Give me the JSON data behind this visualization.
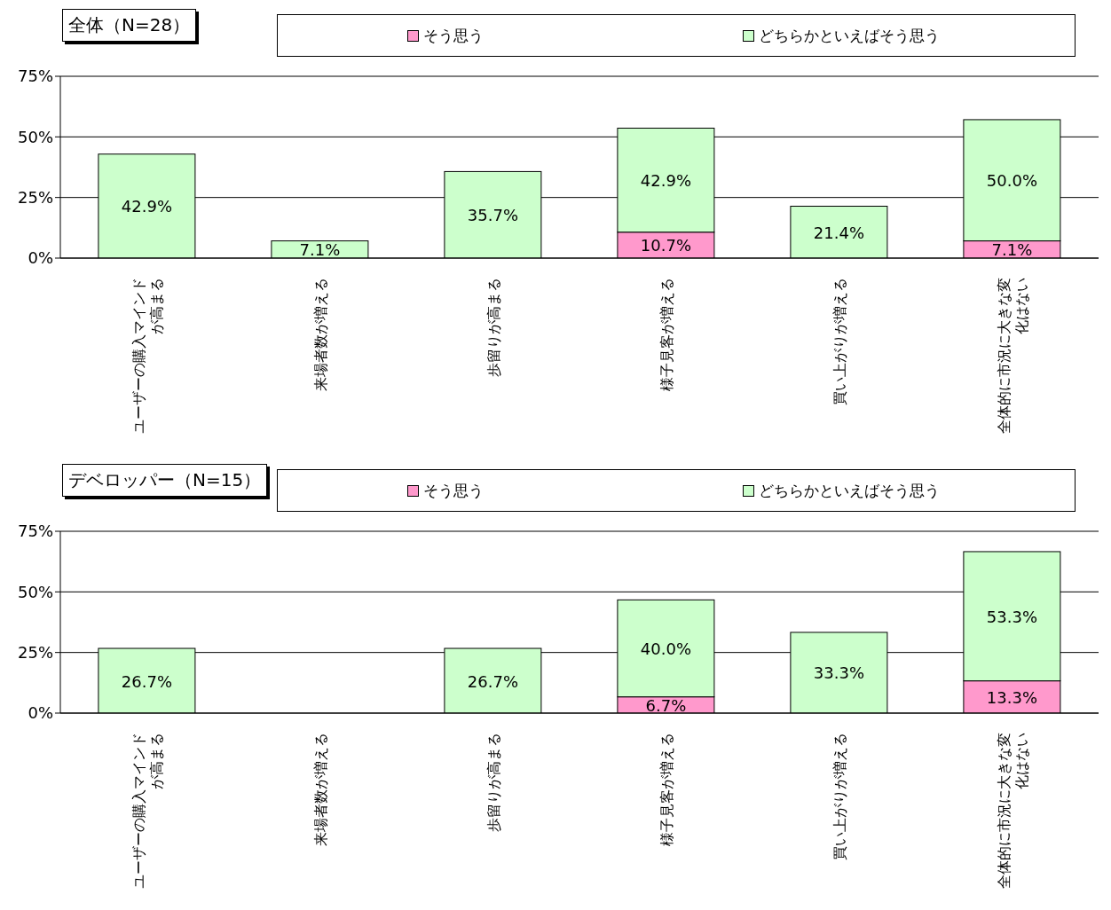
{
  "chart_data": [
    {
      "type": "bar",
      "title": "全体（N=28）",
      "stacked": true,
      "legend": "top",
      "grid": "y",
      "categories": [
        "ユーザーの購入マインドが高まる",
        "来場者数が増える",
        "歩留りが高まる",
        "様子見客が増える",
        "買い上がりが増える",
        "全体的に市況に大きな変化はない"
      ],
      "series": [
        {
          "name": "そう思う",
          "color": "#ff99cc",
          "values": [
            null,
            null,
            null,
            10.7,
            null,
            7.1
          ],
          "value_labels": [
            null,
            null,
            null,
            "10.7%",
            null,
            "7.1%"
          ]
        },
        {
          "name": "どちらかといえばそう思う",
          "color": "#ccffcc",
          "values": [
            42.9,
            7.1,
            35.7,
            42.9,
            21.4,
            50.0
          ],
          "value_labels": [
            "42.9%",
            "7.1%",
            "35.7%",
            "42.9%",
            "21.4%",
            "50.0%"
          ]
        }
      ],
      "ylim": [
        0,
        75
      ],
      "yticks": [
        {
          "value": 0,
          "label": "0%"
        },
        {
          "value": 25,
          "label": "25%"
        },
        {
          "value": 50,
          "label": "50%"
        },
        {
          "value": 75,
          "label": "75%"
        }
      ]
    },
    {
      "type": "bar",
      "title": "デベロッパー（N=15）",
      "stacked": true,
      "legend": "top",
      "grid": "y",
      "categories": [
        "ユーザーの購入マインドが高まる",
        "来場者数が増える",
        "歩留りが高まる",
        "様子見客が増える",
        "買い上がりが増える",
        "全体的に市況に大きな変化はない"
      ],
      "series": [
        {
          "name": "そう思う",
          "color": "#ff99cc",
          "values": [
            null,
            null,
            null,
            6.7,
            null,
            13.3
          ],
          "value_labels": [
            null,
            null,
            null,
            "6.7%",
            null,
            "13.3%"
          ]
        },
        {
          "name": "どちらかといえばそう思う",
          "color": "#ccffcc",
          "values": [
            26.7,
            null,
            26.7,
            40.0,
            33.3,
            53.3
          ],
          "value_labels": [
            "26.7%",
            null,
            "26.7%",
            "40.0%",
            "33.3%",
            "53.3%"
          ]
        }
      ],
      "ylim": [
        0,
        75
      ],
      "yticks": [
        {
          "value": 0,
          "label": "0%"
        },
        {
          "value": 25,
          "label": "25%"
        },
        {
          "value": 50,
          "label": "50%"
        },
        {
          "value": 75,
          "label": "75%"
        }
      ]
    }
  ]
}
